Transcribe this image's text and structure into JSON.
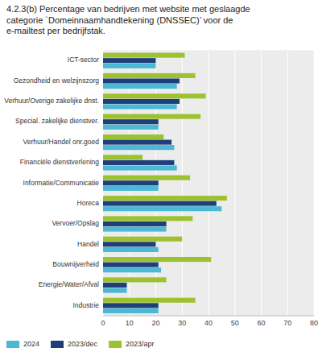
{
  "chart_data": {
    "type": "bar",
    "orientation": "horizontal",
    "title": "4.2.3(b) Percentage van bedrijven met website met geslaagde\ncategorie `Domeinnaamhandtekening (DNSSEC)’ voor de\ne-mailtest per bedrijfstak.",
    "categories": [
      "ICT-sector",
      "Gezondheid en welzijnszorg",
      "Verhuur/Overige zakelijke dnst.",
      "Special. zakelijke dienstver.",
      "Verhuur/Handel onr.goed",
      "Financiële dienstverlening",
      "Informatie/Communicatie",
      "Horeca",
      "Vervoer/Opslag",
      "Handel",
      "Bouwnijverheid",
      "Energie/Water/Afval",
      "Industrie"
    ],
    "series": [
      {
        "name": "2024",
        "color": "#4bb8d4",
        "values": [
          20,
          28,
          28,
          21,
          27,
          28,
          21,
          45,
          24,
          21,
          22,
          9,
          21
        ]
      },
      {
        "name": "2023/dec",
        "color": "#1e3f7a",
        "values": [
          20,
          29,
          29,
          21,
          26,
          27,
          21,
          43,
          24,
          20,
          21,
          9,
          21
        ]
      },
      {
        "name": "2023/apr",
        "color": "#9dc230",
        "values": [
          31,
          35,
          39,
          37,
          23,
          15,
          33,
          47,
          34,
          30,
          41,
          24,
          35
        ]
      }
    ],
    "xlim": [
      0,
      80
    ],
    "xticks": [
      0,
      10,
      20,
      30,
      40,
      50,
      60,
      70,
      80
    ],
    "grid": true,
    "legend": "bottom"
  }
}
